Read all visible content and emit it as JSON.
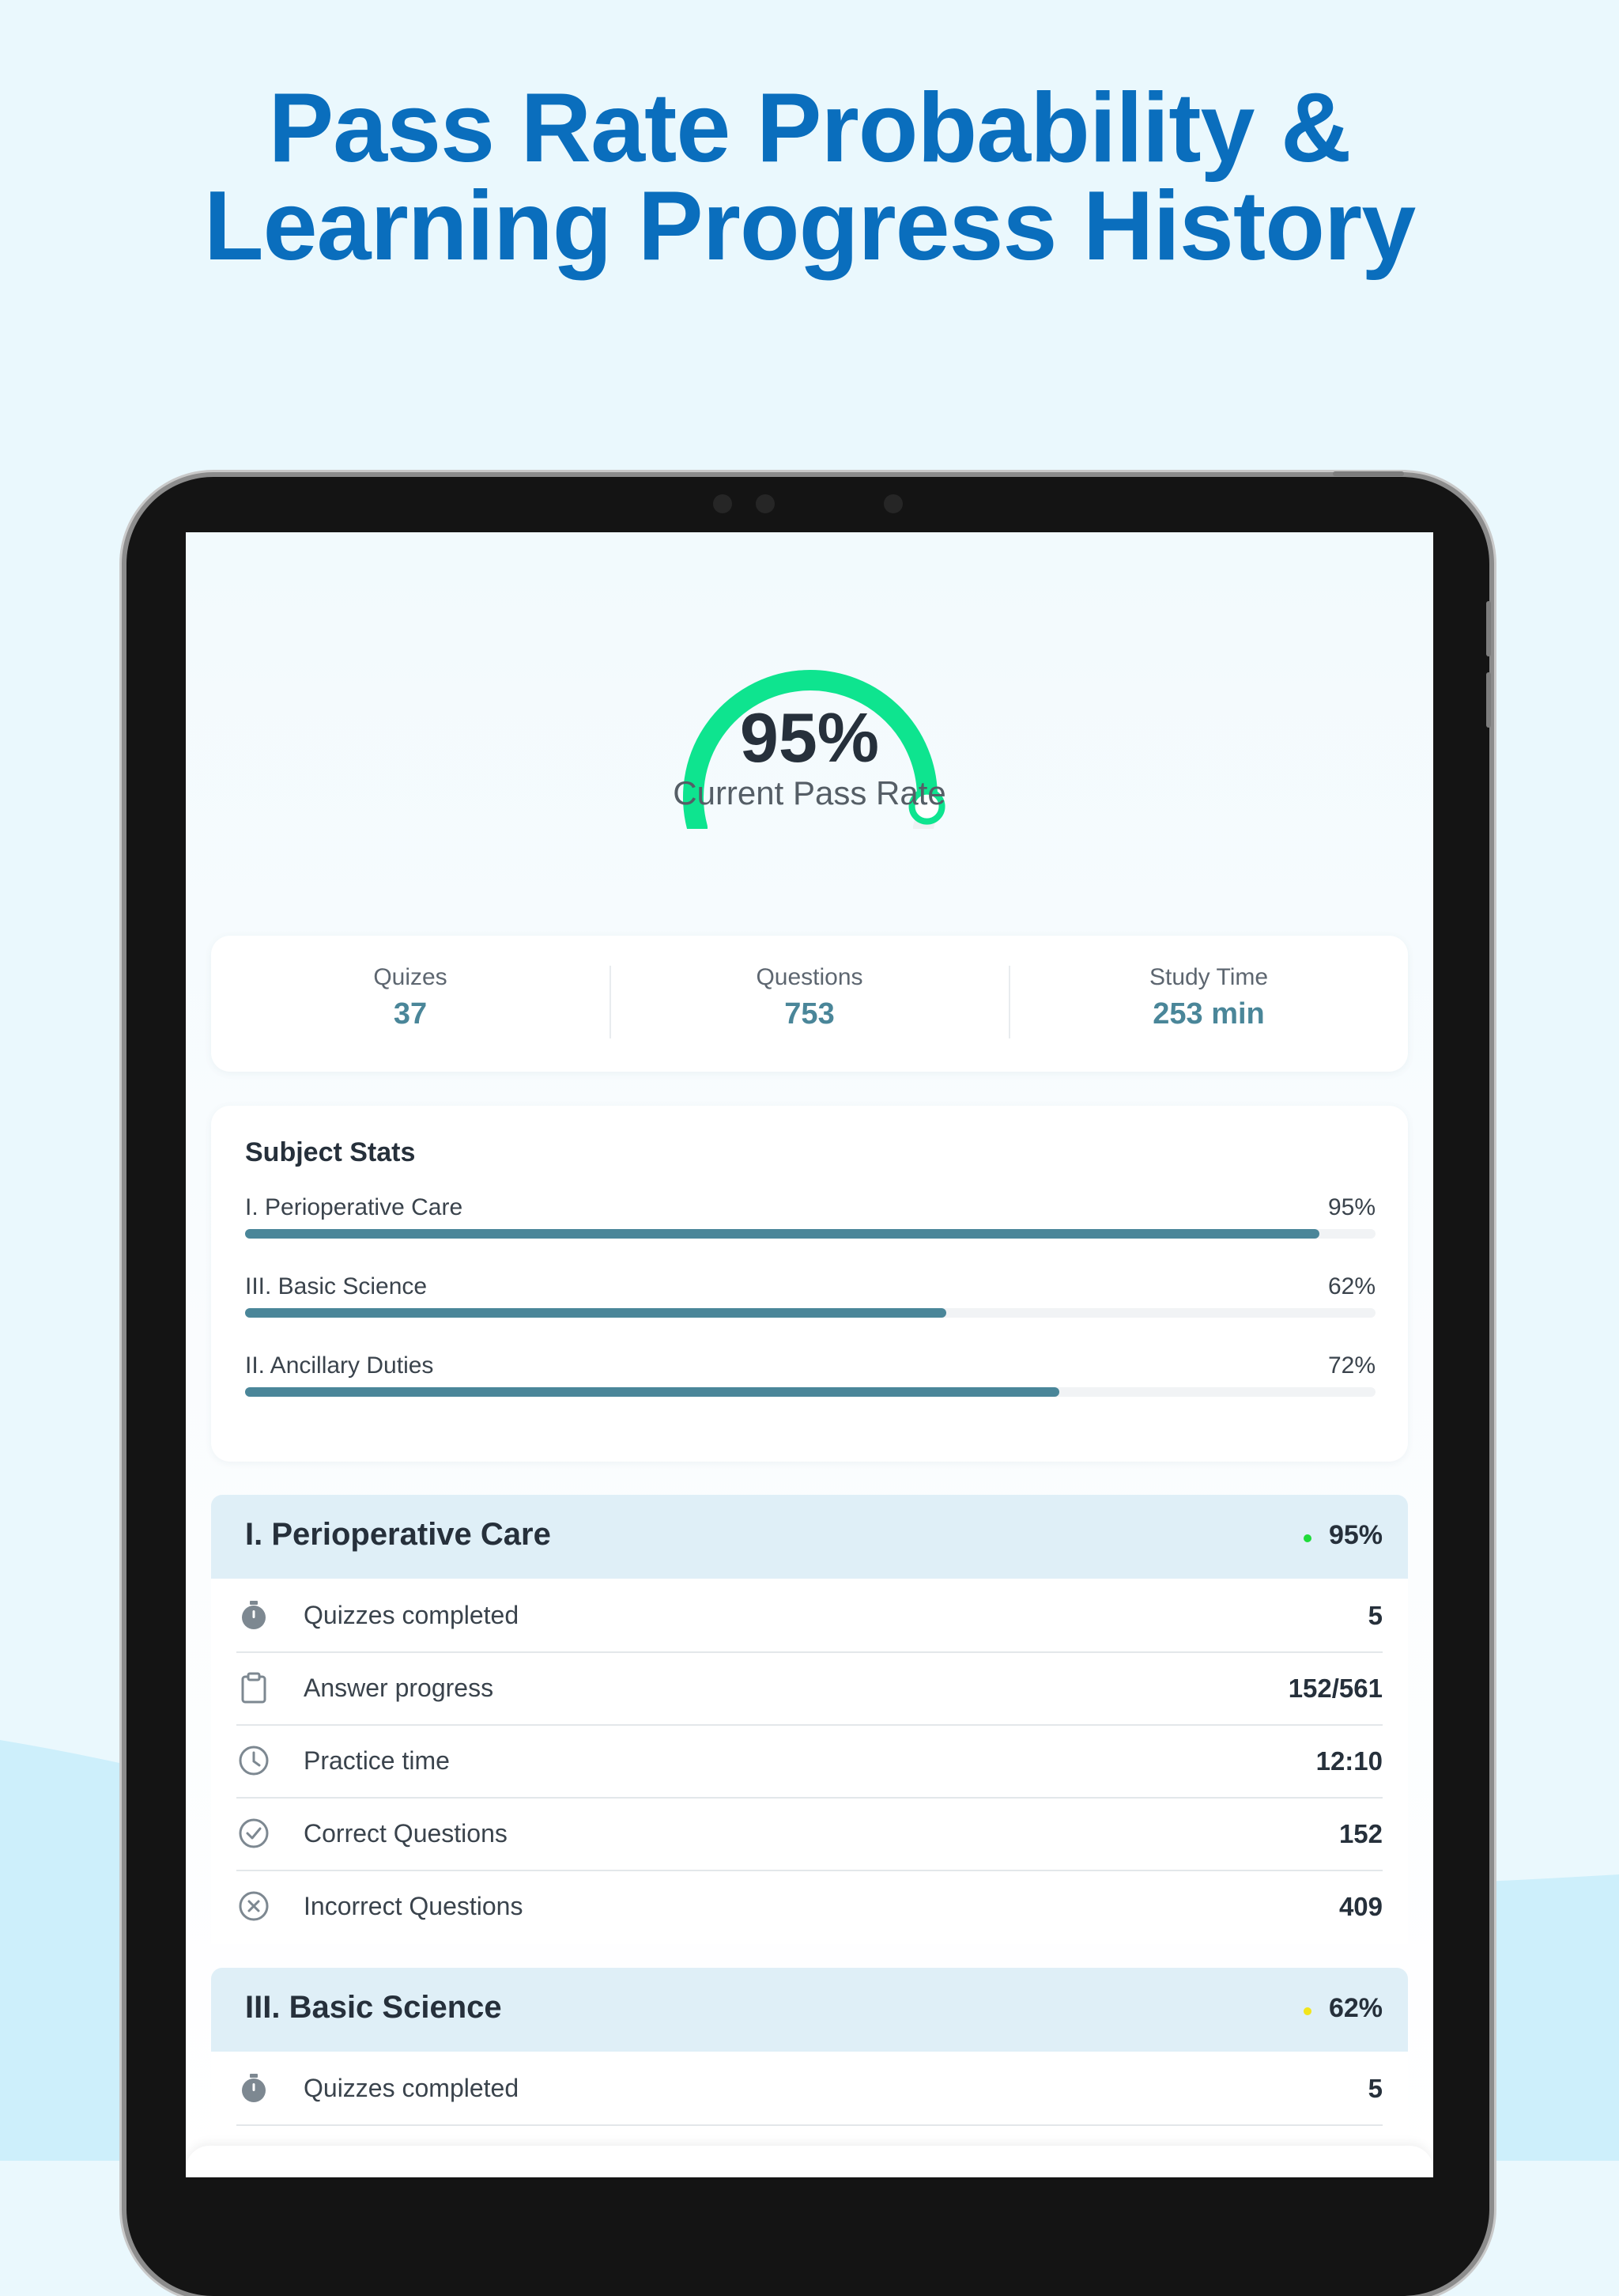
{
  "headline": {
    "line1": "Pass Rate Probability &",
    "line2": "Learning Progress History"
  },
  "colors": {
    "headline": "#0a6ebd",
    "gauge": "#0ee48f",
    "accent": "#4a8699",
    "dot_green": "#1fdb3a",
    "dot_yellow": "#f2e51c"
  },
  "gauge": {
    "value_text": "95%",
    "value": 0.95,
    "label": "Current Pass Rate"
  },
  "summary": [
    {
      "label": "Quizes",
      "value": "37"
    },
    {
      "label": "Questions",
      "value": "753"
    },
    {
      "label": "Study Time",
      "value": "253 min"
    }
  ],
  "subject_stats": {
    "title": "Subject Stats",
    "items": [
      {
        "name": "I. Perioperative Care",
        "pct": "95%",
        "value": 0.95
      },
      {
        "name": "III. Basic Science",
        "pct": "62%",
        "value": 0.62
      },
      {
        "name": "II. Ancillary Duties",
        "pct": "72%",
        "value": 0.72
      }
    ]
  },
  "topics": [
    {
      "title": "I. Perioperative Care",
      "pct": "95%",
      "dot": "green",
      "rows": [
        {
          "icon": "stopwatch-icon",
          "label": "Quizzes completed",
          "value": "5"
        },
        {
          "icon": "clipboard-icon",
          "label": "Answer progress",
          "value": "152/561"
        },
        {
          "icon": "clock-icon",
          "label": "Practice time",
          "value": "12:10"
        },
        {
          "icon": "check-circle-icon",
          "label": "Correct Questions",
          "value": "152"
        },
        {
          "icon": "x-circle-icon",
          "label": "Incorrect Questions",
          "value": "409"
        }
      ]
    },
    {
      "title": "III. Basic Science",
      "pct": "62%",
      "dot": "yellow",
      "rows": [
        {
          "icon": "stopwatch-icon",
          "label": "Quizzes completed",
          "value": "5"
        }
      ]
    }
  ]
}
